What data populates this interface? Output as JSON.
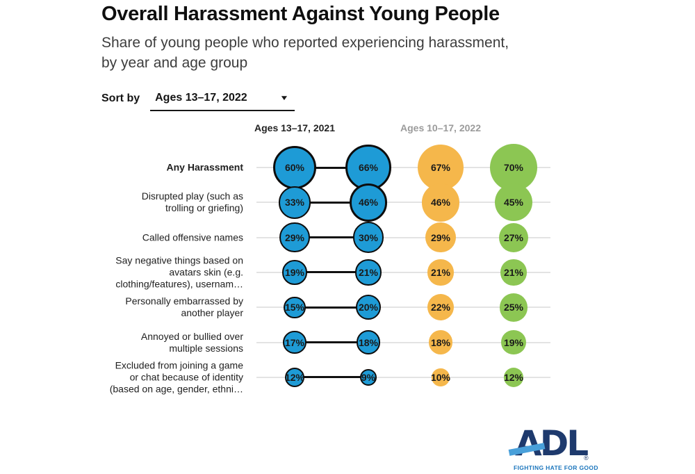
{
  "title": "Overall Harassment Against Young People",
  "subtitle": "Share of young people who reported experiencing harassment, by year and age group",
  "sort": {
    "label": "Sort by",
    "value": "Ages 13–17, 2022",
    "caret": "▼"
  },
  "chart_data": {
    "type": "scatter",
    "variant": "bubble-dot-plot",
    "unit": "%",
    "grid": "horizontal-row-lines",
    "legend_position": "top",
    "categories": [
      "Any Harassment",
      "Disrupted play (such as trolling or griefing)",
      "Called offensive names",
      "Say negative things based on avatars skin (e.g. clothing/features), usernam…",
      "Personally embarrassed by another player",
      "Annoyed or bullied over multiple sessions",
      "Excluded from joining a game or chat because of identity (based on age, gender, ethni…"
    ],
    "bold_category_index": 0,
    "series": [
      {
        "header": "Ages 13–17, 2021",
        "header_color": "#222222",
        "color": "#1E9BD6",
        "outlined": true,
        "values": [
          60,
          33,
          29,
          19,
          15,
          17,
          12
        ]
      },
      {
        "header": "",
        "header_color": "",
        "color": "#1E9BD6",
        "outlined": true,
        "values": [
          66,
          46,
          30,
          21,
          20,
          18,
          9
        ]
      },
      {
        "header": "Ages 10–17, 2022",
        "header_color": "#9B9B9B",
        "color": "#F5B74B",
        "outlined": false,
        "values": [
          67,
          46,
          29,
          21,
          22,
          18,
          10
        ]
      },
      {
        "header": "",
        "header_color": "",
        "color": "#8CC653",
        "outlined": false,
        "values": [
          70,
          45,
          27,
          21,
          25,
          19,
          12
        ]
      }
    ],
    "connected_series": [
      0,
      1
    ],
    "colors": {
      "row_line": "#E3E3E3",
      "connector": "#111111",
      "bubble_outline": "#0d0d0d",
      "value_text": "#1a1a1a"
    }
  },
  "logo": {
    "text": "ADL",
    "registered": "®",
    "tagline": "FIGHTING HATE FOR GOOD",
    "navy": "#1E3A6D",
    "stripe_blue": "#49A0DA",
    "tagline_blue": "#1B75BC"
  }
}
